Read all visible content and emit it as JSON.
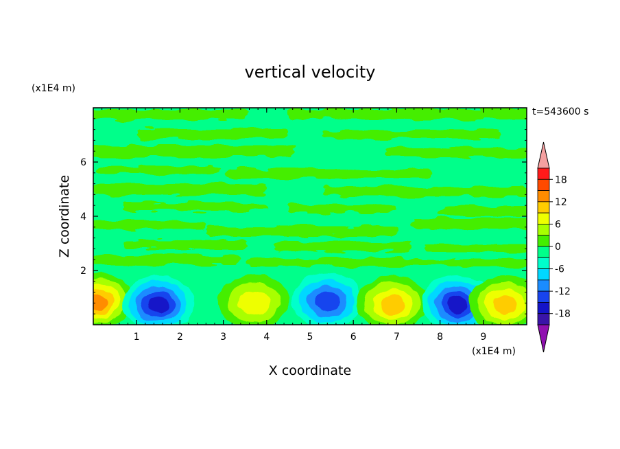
{
  "chart_data": {
    "type": "heatmap",
    "title": "vertical velocity",
    "time_label": "t=543600 s",
    "xlabel": "X coordinate",
    "ylabel": "Z coordinate",
    "x_unit": "(x1E4 m)",
    "y_unit": "(x1E4 m)",
    "xlim": [
      0,
      10
    ],
    "ylim": [
      0,
      8
    ],
    "x_ticks": [
      1,
      2,
      3,
      4,
      5,
      6,
      7,
      8,
      9
    ],
    "x_tick_labels": [
      "1",
      "2",
      "3",
      "4",
      "5",
      "6",
      "7",
      "8",
      "9"
    ],
    "y_ticks": [
      2,
      4,
      6
    ],
    "y_tick_labels": [
      "2",
      "4",
      "6"
    ],
    "colorbar": {
      "levels": [
        21,
        18,
        15,
        12,
        9,
        6,
        3,
        0,
        -3,
        -6,
        -9,
        -12,
        -15,
        -18
      ],
      "tick_values": [
        18,
        12,
        6,
        0,
        -6,
        -12,
        -18
      ],
      "tick_labels": [
        "18",
        "12",
        "6",
        "0",
        "-6",
        "-12",
        "-18"
      ],
      "colors": [
        "#ff1a1a",
        "#ff4a00",
        "#ff8c00",
        "#ffcc00",
        "#eeff00",
        "#a8ff00",
        "#44ee00",
        "#00ff8a",
        "#00ffcc",
        "#00d8ff",
        "#1a8cff",
        "#1844ee",
        "#1414c8",
        "#3a14a8"
      ],
      "over_color": "#f5a0a0",
      "under_color": "#9010b0"
    },
    "features": [
      {
        "x": 0.1,
        "z": 0.9,
        "w": 15,
        "sign": "up"
      },
      {
        "x": 1.5,
        "z": 0.8,
        "w": -13,
        "sign": "down"
      },
      {
        "x": 3.7,
        "z": 0.85,
        "w": 9,
        "sign": "up"
      },
      {
        "x": 5.4,
        "z": 0.9,
        "w": -10,
        "sign": "down"
      },
      {
        "x": 6.9,
        "z": 0.8,
        "w": 12,
        "sign": "up"
      },
      {
        "x": 8.4,
        "z": 0.8,
        "w": -13,
        "sign": "down"
      },
      {
        "x": 9.5,
        "z": 0.8,
        "w": 11,
        "sign": "up"
      }
    ]
  }
}
